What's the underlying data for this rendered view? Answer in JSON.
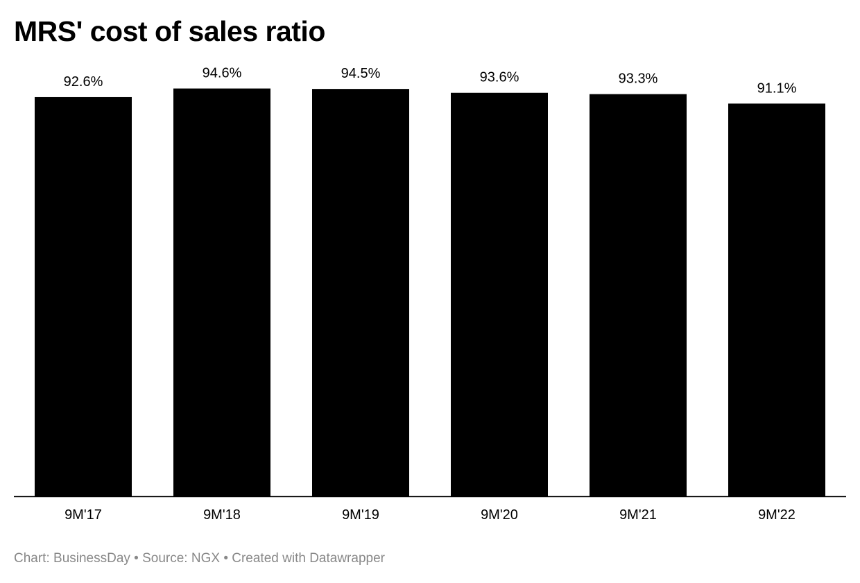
{
  "chart_data": {
    "type": "bar",
    "title": "MRS' cost of sales ratio",
    "categories": [
      "9M'17",
      "9M'18",
      "9M'19",
      "9M'20",
      "9M'21",
      "9M'22"
    ],
    "values": [
      92.6,
      94.6,
      94.5,
      93.6,
      93.3,
      91.1
    ],
    "value_labels": [
      "92.6%",
      "94.6%",
      "94.5%",
      "93.6%",
      "93.3%",
      "91.1%"
    ],
    "xlabel": "",
    "ylabel": "",
    "ylim": [
      0,
      100
    ],
    "grid": false,
    "bar_color": "#000000"
  },
  "footer": {
    "text": "Chart: BusinessDay • Source: NGX • Created with Datawrapper"
  }
}
